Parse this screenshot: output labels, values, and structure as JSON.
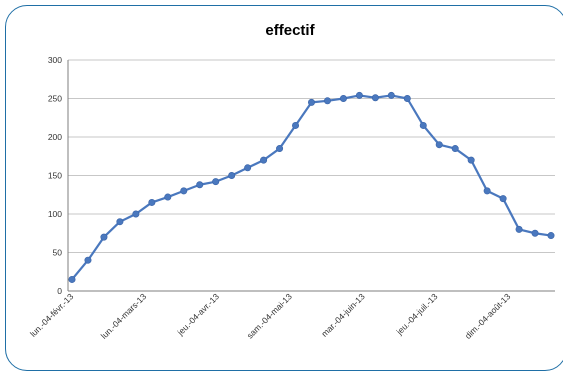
{
  "chart_data": {
    "type": "line",
    "title": "effectif",
    "xlabel": "",
    "ylabel": "",
    "ylim": [
      0,
      300
    ],
    "yticks": [
      0,
      50,
      100,
      150,
      200,
      250,
      300
    ],
    "grid": true,
    "legend": "none",
    "line_color": "#4a78be",
    "x_tick_labels": [
      "lun.-04-févr.-13",
      "lun.-04-mars-13",
      "jeu.-04-avr.-13",
      "sam.-04-mai-13",
      "mar.-04-juin-13",
      "jeu.-04-juil.-13",
      "dim.-04-août-13"
    ],
    "series": [
      {
        "values": [
          15,
          40,
          70,
          90,
          100,
          115,
          122,
          130,
          138,
          142,
          150,
          160,
          170,
          185,
          215,
          245,
          247,
          250,
          254,
          251,
          254,
          250,
          215,
          190,
          185,
          170,
          130,
          120,
          80,
          75,
          72
        ]
      }
    ]
  }
}
